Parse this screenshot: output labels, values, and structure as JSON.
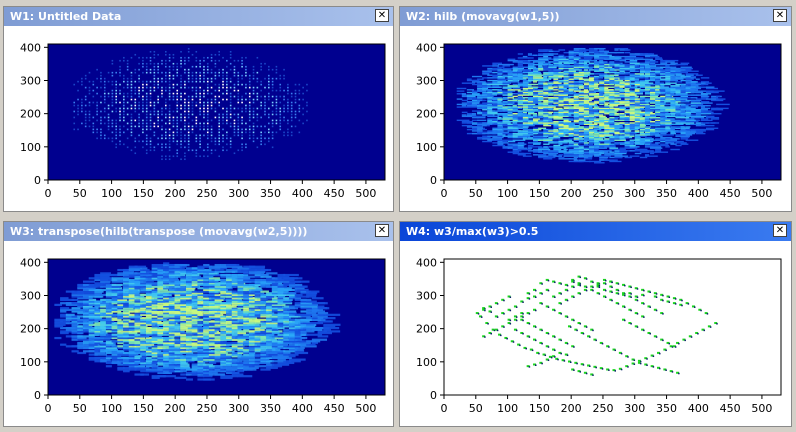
{
  "icons": {
    "close": "close-icon"
  },
  "close_glyph": "✕",
  "colors": {
    "titlebar_inactive": "#8aa6dc",
    "titlebar_active": "#0a46d8",
    "plot_background_dark": "#00008f",
    "plot_background_white": "#ffffff",
    "mask_points": "#1bd420",
    "mask_edges": "#0b1f6b"
  },
  "windows": [
    {
      "id": "W1",
      "title": "W1: Untitled Data",
      "active": false,
      "plot": {
        "type": "heatmap",
        "style": "sparse-dots"
      }
    },
    {
      "id": "W2",
      "title": "W2: hilb (movavg(w1,5))",
      "active": false,
      "plot": {
        "type": "heatmap",
        "style": "horizontal-streaks"
      }
    },
    {
      "id": "W3",
      "title": "W3: transpose(hilb(transpose (movavg(w2,5))))",
      "active": false,
      "plot": {
        "type": "heatmap",
        "style": "blobs"
      }
    },
    {
      "id": "W4",
      "title": "W4: w3/max(w3)>0.5",
      "active": true,
      "plot": {
        "type": "scatter",
        "style": "threshold-mask"
      }
    }
  ],
  "chart_data": {
    "type": "heatmap",
    "xlim": [
      0,
      530
    ],
    "ylim": [
      0,
      410
    ],
    "x_ticks": [
      "0",
      "50",
      "100",
      "150",
      "200",
      "250",
      "300",
      "350",
      "400",
      "450",
      "500"
    ],
    "y_ticks": [
      "0",
      "100",
      "200",
      "300",
      "400"
    ],
    "mask_points": [
      [
        190,
        320
      ],
      [
        200,
        330
      ],
      [
        210,
        335
      ],
      [
        180,
        310
      ],
      [
        170,
        300
      ],
      [
        160,
        320
      ],
      [
        150,
        310
      ],
      [
        140,
        300
      ],
      [
        130,
        295
      ],
      [
        120,
        285
      ],
      [
        110,
        270
      ],
      [
        100,
        260
      ],
      [
        90,
        250
      ],
      [
        80,
        240
      ],
      [
        70,
        255
      ],
      [
        60,
        265
      ],
      [
        55,
        240
      ],
      [
        65,
        220
      ],
      [
        75,
        200
      ],
      [
        85,
        185
      ],
      [
        95,
        175
      ],
      [
        105,
        165
      ],
      [
        115,
        155
      ],
      [
        125,
        145
      ],
      [
        135,
        140
      ],
      [
        145,
        130
      ],
      [
        155,
        125
      ],
      [
        165,
        118
      ],
      [
        175,
        112
      ],
      [
        185,
        108
      ],
      [
        195,
        104
      ],
      [
        205,
        100
      ],
      [
        215,
        96
      ],
      [
        225,
        92
      ],
      [
        235,
        88
      ],
      [
        245,
        84
      ],
      [
        255,
        80
      ],
      [
        265,
        78
      ],
      [
        275,
        82
      ],
      [
        285,
        90
      ],
      [
        295,
        98
      ],
      [
        305,
        106
      ],
      [
        315,
        114
      ],
      [
        325,
        122
      ],
      [
        335,
        130
      ],
      [
        345,
        140
      ],
      [
        355,
        150
      ],
      [
        365,
        160
      ],
      [
        375,
        170
      ],
      [
        385,
        180
      ],
      [
        395,
        190
      ],
      [
        405,
        200
      ],
      [
        415,
        210
      ],
      [
        425,
        220
      ],
      [
        200,
        350
      ],
      [
        210,
        360
      ],
      [
        220,
        355
      ],
      [
        230,
        345
      ],
      [
        240,
        340
      ],
      [
        250,
        350
      ],
      [
        260,
        345
      ],
      [
        270,
        340
      ],
      [
        280,
        335
      ],
      [
        290,
        330
      ],
      [
        300,
        325
      ],
      [
        310,
        320
      ],
      [
        320,
        315
      ],
      [
        330,
        310
      ],
      [
        340,
        305
      ],
      [
        350,
        300
      ],
      [
        360,
        295
      ],
      [
        370,
        290
      ],
      [
        150,
        280
      ],
      [
        160,
        270
      ],
      [
        170,
        260
      ],
      [
        180,
        250
      ],
      [
        190,
        240
      ],
      [
        200,
        230
      ],
      [
        210,
        220
      ],
      [
        220,
        210
      ],
      [
        230,
        200
      ],
      [
        120,
        230
      ],
      [
        130,
        220
      ],
      [
        140,
        210
      ],
      [
        150,
        200
      ],
      [
        160,
        190
      ],
      [
        170,
        180
      ],
      [
        180,
        170
      ],
      [
        190,
        160
      ],
      [
        200,
        150
      ],
      [
        110,
        200
      ],
      [
        120,
        190
      ],
      [
        130,
        180
      ],
      [
        140,
        170
      ],
      [
        150,
        160
      ],
      [
        160,
        150
      ],
      [
        170,
        140
      ],
      [
        180,
        130
      ],
      [
        190,
        125
      ],
      [
        230,
        320
      ],
      [
        240,
        310
      ],
      [
        250,
        300
      ],
      [
        260,
        290
      ],
      [
        270,
        280
      ],
      [
        280,
        270
      ],
      [
        290,
        260
      ],
      [
        300,
        250
      ],
      [
        310,
        240
      ],
      [
        260,
        330
      ],
      [
        270,
        320
      ],
      [
        280,
        310
      ],
      [
        290,
        300
      ],
      [
        300,
        290
      ],
      [
        310,
        280
      ],
      [
        320,
        270
      ],
      [
        330,
        260
      ],
      [
        340,
        250
      ],
      [
        140,
        320
      ],
      [
        130,
        310
      ],
      [
        150,
        340
      ],
      [
        160,
        350
      ],
      [
        170,
        345
      ],
      [
        180,
        340
      ],
      [
        190,
        335
      ],
      [
        200,
        345
      ],
      [
        210,
        340
      ],
      [
        220,
        330
      ],
      [
        240,
        330
      ],
      [
        250,
        320
      ],
      [
        260,
        315
      ],
      [
        270,
        310
      ],
      [
        280,
        305
      ],
      [
        290,
        310
      ],
      [
        300,
        300
      ],
      [
        310,
        305
      ],
      [
        330,
        300
      ],
      [
        340,
        290
      ],
      [
        350,
        285
      ],
      [
        360,
        280
      ],
      [
        370,
        275
      ],
      [
        380,
        280
      ],
      [
        390,
        270
      ],
      [
        400,
        260
      ],
      [
        410,
        250
      ],
      [
        100,
        300
      ],
      [
        90,
        290
      ],
      [
        80,
        280
      ],
      [
        70,
        270
      ],
      [
        60,
        260
      ],
      [
        50,
        250
      ],
      [
        120,
        250
      ],
      [
        110,
        240
      ],
      [
        100,
        230
      ],
      [
        140,
        260
      ],
      [
        130,
        250
      ],
      [
        120,
        240
      ],
      [
        110,
        230
      ],
      [
        100,
        220
      ],
      [
        90,
        210
      ],
      [
        80,
        200
      ],
      [
        70,
        190
      ],
      [
        60,
        180
      ],
      [
        180,
        280
      ],
      [
        190,
        290
      ],
      [
        200,
        300
      ],
      [
        210,
        310
      ],
      [
        220,
        320
      ],
      [
        230,
        330
      ],
      [
        240,
        335
      ],
      [
        250,
        340
      ],
      [
        260,
        345
      ],
      [
        170,
        120
      ],
      [
        160,
        110
      ],
      [
        150,
        100
      ],
      [
        140,
        95
      ],
      [
        130,
        90
      ],
      [
        200,
        80
      ],
      [
        210,
        75
      ],
      [
        220,
        70
      ],
      [
        230,
        65
      ],
      [
        280,
        230
      ],
      [
        290,
        220
      ],
      [
        300,
        210
      ],
      [
        310,
        200
      ],
      [
        320,
        190
      ],
      [
        330,
        180
      ],
      [
        340,
        170
      ],
      [
        350,
        160
      ],
      [
        360,
        150
      ],
      [
        195,
        210
      ],
      [
        205,
        200
      ],
      [
        215,
        190
      ],
      [
        225,
        180
      ],
      [
        235,
        170
      ],
      [
        245,
        160
      ],
      [
        255,
        150
      ],
      [
        265,
        140
      ],
      [
        275,
        130
      ],
      [
        285,
        120
      ],
      [
        295,
        110
      ],
      [
        305,
        100
      ],
      [
        315,
        95
      ],
      [
        325,
        90
      ],
      [
        335,
        85
      ],
      [
        345,
        80
      ],
      [
        355,
        75
      ],
      [
        365,
        70
      ]
    ]
  }
}
